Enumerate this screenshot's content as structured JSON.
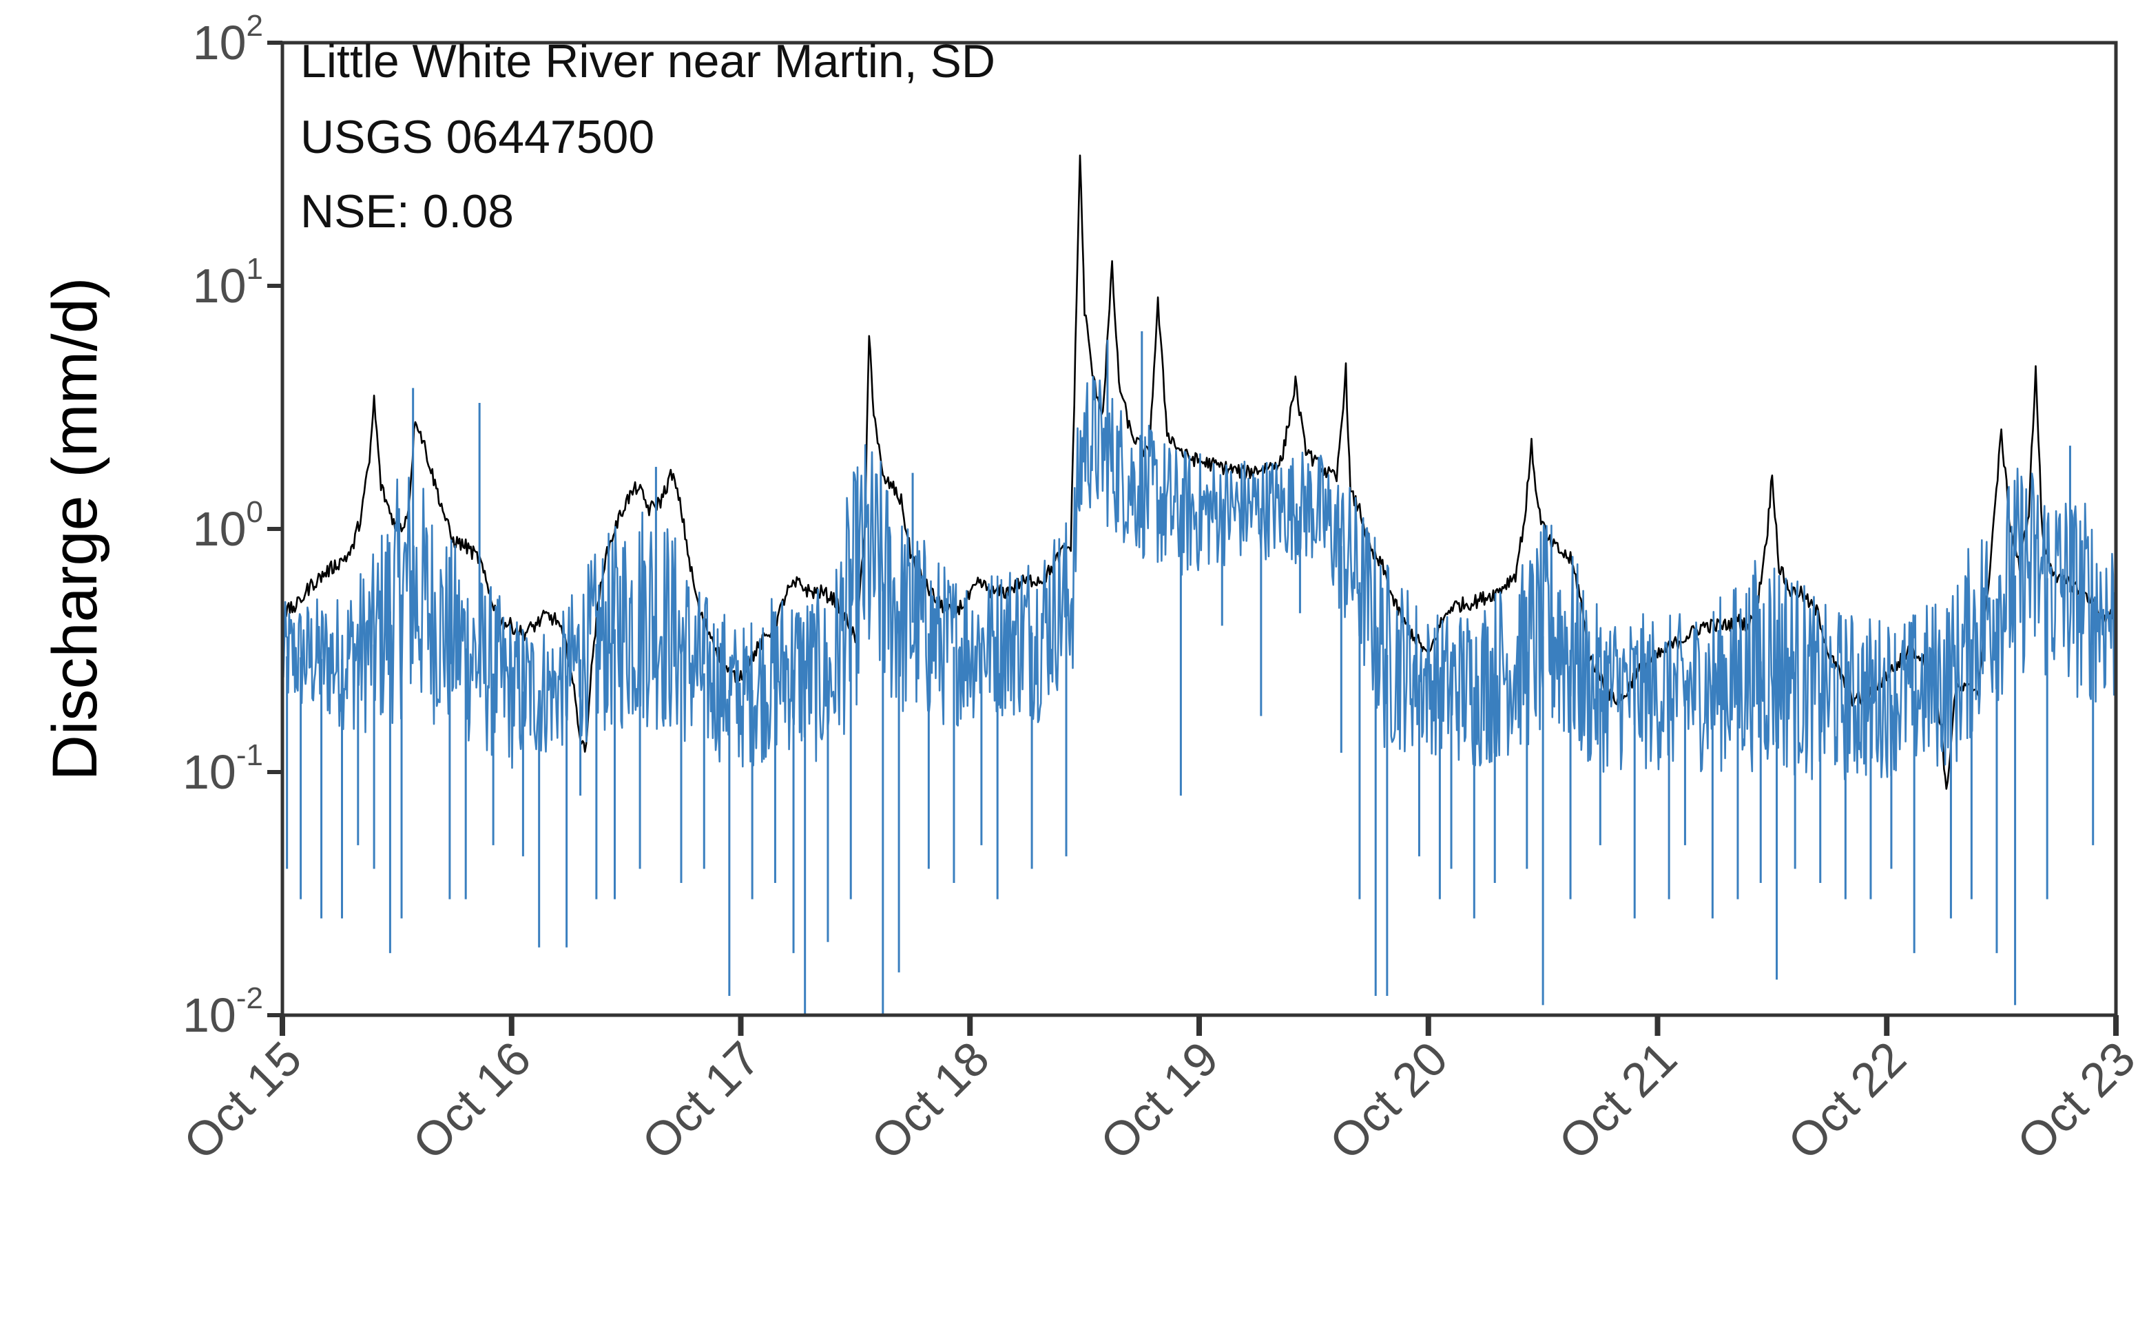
{
  "chart_data": {
    "type": "line",
    "title": "",
    "xlabel": "",
    "ylabel": "Discharge (mm/d)",
    "y_scale": "log",
    "ylim": [
      0.01,
      100
    ],
    "xlim": [
      "Oct 15",
      "Oct 23"
    ],
    "grid": false,
    "legend": "none",
    "annotations": [
      "Little White River near Martin, SD",
      "USGS 06447500",
      "NSE: 0.08"
    ],
    "x_ticks": [
      "Oct 15",
      "Oct 16",
      "Oct 17",
      "Oct 18",
      "Oct 19",
      "Oct 20",
      "Oct 21",
      "Oct 22",
      "Oct 23"
    ],
    "y_ticks": [
      {
        "value": 0.01,
        "base": "10",
        "exp": "-2"
      },
      {
        "value": 0.1,
        "base": "10",
        "exp": "-1"
      },
      {
        "value": 1,
        "base": "10",
        "exp": "0"
      },
      {
        "value": 10,
        "base": "10",
        "exp": "1"
      },
      {
        "value": 100,
        "base": "10",
        "exp": "2"
      }
    ],
    "series": [
      {
        "role": "observed",
        "color": "#000000",
        "x_days_note": "days after Oct 15",
        "points": [
          [
            0.0,
            0.45
          ],
          [
            0.06,
            0.48
          ],
          [
            0.12,
            0.58
          ],
          [
            0.18,
            0.65
          ],
          [
            0.24,
            0.72
          ],
          [
            0.3,
            0.8
          ],
          [
            0.34,
            1.1
          ],
          [
            0.38,
            1.9
          ],
          [
            0.4,
            3.4
          ],
          [
            0.43,
            1.5
          ],
          [
            0.48,
            1.1
          ],
          [
            0.52,
            1.0
          ],
          [
            0.55,
            1.2
          ],
          [
            0.58,
            2.9
          ],
          [
            0.62,
            2.2
          ],
          [
            0.66,
            1.6
          ],
          [
            0.7,
            1.2
          ],
          [
            0.74,
            0.9
          ],
          [
            0.8,
            0.85
          ],
          [
            0.86,
            0.75
          ],
          [
            0.9,
            0.55
          ],
          [
            0.95,
            0.42
          ],
          [
            1.0,
            0.4
          ],
          [
            1.05,
            0.37
          ],
          [
            1.1,
            0.4
          ],
          [
            1.15,
            0.44
          ],
          [
            1.2,
            0.42
          ],
          [
            1.25,
            0.3
          ],
          [
            1.3,
            0.14
          ],
          [
            1.32,
            0.12
          ],
          [
            1.36,
            0.35
          ],
          [
            1.4,
            0.7
          ],
          [
            1.45,
            1.0
          ],
          [
            1.5,
            1.3
          ],
          [
            1.55,
            1.5
          ],
          [
            1.6,
            1.2
          ],
          [
            1.65,
            1.3
          ],
          [
            1.7,
            1.7
          ],
          [
            1.74,
            1.2
          ],
          [
            1.78,
            0.7
          ],
          [
            1.82,
            0.45
          ],
          [
            1.88,
            0.35
          ],
          [
            1.92,
            0.28
          ],
          [
            1.96,
            0.25
          ],
          [
            2.0,
            0.25
          ],
          [
            2.05,
            0.3
          ],
          [
            2.1,
            0.35
          ],
          [
            2.15,
            0.4
          ],
          [
            2.2,
            0.55
          ],
          [
            2.25,
            0.6
          ],
          [
            2.3,
            0.55
          ],
          [
            2.35,
            0.55
          ],
          [
            2.4,
            0.52
          ],
          [
            2.45,
            0.45
          ],
          [
            2.5,
            0.35
          ],
          [
            2.54,
            0.9
          ],
          [
            2.56,
            6.2
          ],
          [
            2.58,
            3.1
          ],
          [
            2.62,
            1.6
          ],
          [
            2.66,
            1.5
          ],
          [
            2.7,
            1.3
          ],
          [
            2.74,
            0.8
          ],
          [
            2.8,
            0.6
          ],
          [
            2.86,
            0.5
          ],
          [
            2.92,
            0.45
          ],
          [
            2.98,
            0.5
          ],
          [
            3.04,
            0.6
          ],
          [
            3.1,
            0.55
          ],
          [
            3.16,
            0.55
          ],
          [
            3.22,
            0.6
          ],
          [
            3.28,
            0.62
          ],
          [
            3.32,
            0.62
          ],
          [
            3.36,
            0.7
          ],
          [
            3.4,
            0.8
          ],
          [
            3.44,
            0.85
          ],
          [
            3.46,
            5.5
          ],
          [
            3.48,
            35.0
          ],
          [
            3.5,
            8.0
          ],
          [
            3.54,
            4.0
          ],
          [
            3.58,
            3.0
          ],
          [
            3.62,
            12.0
          ],
          [
            3.65,
            4.0
          ],
          [
            3.7,
            2.5
          ],
          [
            3.74,
            2.2
          ],
          [
            3.78,
            2.0
          ],
          [
            3.82,
            8.5
          ],
          [
            3.86,
            2.5
          ],
          [
            3.9,
            2.2
          ],
          [
            3.94,
            2.0
          ],
          [
            4.0,
            1.9
          ],
          [
            4.1,
            1.8
          ],
          [
            4.2,
            1.7
          ],
          [
            4.3,
            1.8
          ],
          [
            4.36,
            1.9
          ],
          [
            4.42,
            4.0
          ],
          [
            4.46,
            2.2
          ],
          [
            4.5,
            1.9
          ],
          [
            4.56,
            1.7
          ],
          [
            4.6,
            1.6
          ],
          [
            4.64,
            4.5
          ],
          [
            4.66,
            1.4
          ],
          [
            4.7,
            1.2
          ],
          [
            4.75,
            0.8
          ],
          [
            4.8,
            0.7
          ],
          [
            4.85,
            0.5
          ],
          [
            4.9,
            0.4
          ],
          [
            4.95,
            0.35
          ],
          [
            5.0,
            0.3
          ],
          [
            5.05,
            0.4
          ],
          [
            5.1,
            0.48
          ],
          [
            5.2,
            0.5
          ],
          [
            5.3,
            0.55
          ],
          [
            5.38,
            0.65
          ],
          [
            5.42,
            1.1
          ],
          [
            5.45,
            2.2
          ],
          [
            5.48,
            1.2
          ],
          [
            5.52,
            0.9
          ],
          [
            5.58,
            0.8
          ],
          [
            5.62,
            0.75
          ],
          [
            5.66,
            0.55
          ],
          [
            5.7,
            0.3
          ],
          [
            5.75,
            0.25
          ],
          [
            5.8,
            0.2
          ],
          [
            5.85,
            0.2
          ],
          [
            5.9,
            0.25
          ],
          [
            5.95,
            0.28
          ],
          [
            6.0,
            0.3
          ],
          [
            6.1,
            0.35
          ],
          [
            6.2,
            0.4
          ],
          [
            6.3,
            0.4
          ],
          [
            6.35,
            0.42
          ],
          [
            6.4,
            0.4
          ],
          [
            6.44,
            0.52
          ],
          [
            6.48,
            1.0
          ],
          [
            6.5,
            1.7
          ],
          [
            6.53,
            0.7
          ],
          [
            6.58,
            0.55
          ],
          [
            6.62,
            0.55
          ],
          [
            6.7,
            0.45
          ],
          [
            6.75,
            0.3
          ],
          [
            6.8,
            0.25
          ],
          [
            6.85,
            0.2
          ],
          [
            6.9,
            0.2
          ],
          [
            7.0,
            0.25
          ],
          [
            7.05,
            0.28
          ],
          [
            7.1,
            0.32
          ],
          [
            7.15,
            0.3
          ],
          [
            7.2,
            0.24
          ],
          [
            7.24,
            0.15
          ],
          [
            7.26,
            0.08
          ],
          [
            7.3,
            0.22
          ],
          [
            7.35,
            0.22
          ],
          [
            7.4,
            0.22
          ],
          [
            7.44,
            0.55
          ],
          [
            7.5,
            2.5
          ],
          [
            7.54,
            1.0
          ],
          [
            7.58,
            0.7
          ],
          [
            7.62,
            1.2
          ],
          [
            7.65,
            4.5
          ],
          [
            7.68,
            0.9
          ],
          [
            7.72,
            0.7
          ],
          [
            7.76,
            0.6
          ],
          [
            7.8,
            0.6
          ],
          [
            7.86,
            0.55
          ],
          [
            7.9,
            0.5
          ],
          [
            7.95,
            0.42
          ],
          [
            8.0,
            0.45
          ]
        ]
      },
      {
        "role": "simulated",
        "color": "#3a7fbf",
        "x_days_note": "days after Oct 15",
        "envelope": [
          [
            0.0,
            0.18,
            0.5
          ],
          [
            0.25,
            0.15,
            0.55
          ],
          [
            0.4,
            0.14,
            0.8
          ],
          [
            0.55,
            0.17,
            2.0
          ],
          [
            0.7,
            0.15,
            1.0
          ],
          [
            0.85,
            0.12,
            0.7
          ],
          [
            1.0,
            0.1,
            0.45
          ],
          [
            1.2,
            0.12,
            0.4
          ],
          [
            1.4,
            0.14,
            0.9
          ],
          [
            1.6,
            0.15,
            1.5
          ],
          [
            1.8,
            0.12,
            0.6
          ],
          [
            2.0,
            0.1,
            0.4
          ],
          [
            2.2,
            0.12,
            0.6
          ],
          [
            2.4,
            0.1,
            0.55
          ],
          [
            2.55,
            0.22,
            2.5
          ],
          [
            2.7,
            0.16,
            1.2
          ],
          [
            2.9,
            0.15,
            0.7
          ],
          [
            3.1,
            0.17,
            0.7
          ],
          [
            3.3,
            0.16,
            0.9
          ],
          [
            3.45,
            0.25,
            1.2
          ],
          [
            3.5,
            1.2,
            5.0
          ],
          [
            3.7,
            0.8,
            3.0
          ],
          [
            3.9,
            0.6,
            2.2
          ],
          [
            4.1,
            0.7,
            2.0
          ],
          [
            4.3,
            0.75,
            2.0
          ],
          [
            4.5,
            0.7,
            2.2
          ],
          [
            4.65,
            0.35,
            1.6
          ],
          [
            4.8,
            0.12,
            0.8
          ],
          [
            5.0,
            0.12,
            0.45
          ],
          [
            5.2,
            0.1,
            0.5
          ],
          [
            5.4,
            0.12,
            0.7
          ],
          [
            5.55,
            0.13,
            1.2
          ],
          [
            5.7,
            0.1,
            0.5
          ],
          [
            5.9,
            0.1,
            0.45
          ],
          [
            6.1,
            0.1,
            0.45
          ],
          [
            6.3,
            0.1,
            0.55
          ],
          [
            6.5,
            0.1,
            0.9
          ],
          [
            6.7,
            0.09,
            0.5
          ],
          [
            6.9,
            0.09,
            0.45
          ],
          [
            7.1,
            0.1,
            0.45
          ],
          [
            7.3,
            0.1,
            0.6
          ],
          [
            7.5,
            0.2,
            1.5
          ],
          [
            7.6,
            0.25,
            2.0
          ],
          [
            7.8,
            0.2,
            1.5
          ],
          [
            8.0,
            0.18,
            1.0
          ]
        ],
        "spikes": [
          [
            0.02,
            0.04
          ],
          [
            0.08,
            0.03
          ],
          [
            0.17,
            0.025
          ],
          [
            0.26,
            0.025
          ],
          [
            0.33,
            0.05
          ],
          [
            0.4,
            0.04
          ],
          [
            0.47,
            0.018
          ],
          [
            0.52,
            0.025
          ],
          [
            0.57,
            3.8
          ],
          [
            0.73,
            0.03
          ],
          [
            0.8,
            0.03
          ],
          [
            0.86,
            3.3
          ],
          [
            0.92,
            0.05
          ],
          [
            1.05,
            0.045
          ],
          [
            1.12,
            0.019
          ],
          [
            1.24,
            0.019
          ],
          [
            1.3,
            0.08
          ],
          [
            1.37,
            0.03
          ],
          [
            1.45,
            0.03
          ],
          [
            1.56,
            0.04
          ],
          [
            1.63,
            1.8
          ],
          [
            1.74,
            0.035
          ],
          [
            1.84,
            0.04
          ],
          [
            1.95,
            0.012
          ],
          [
            2.05,
            0.03
          ],
          [
            2.15,
            0.035
          ],
          [
            2.23,
            0.018
          ],
          [
            2.28,
            0.01
          ],
          [
            2.38,
            0.02
          ],
          [
            2.48,
            0.03
          ],
          [
            2.62,
            0.01
          ],
          [
            2.69,
            0.015
          ],
          [
            2.75,
            1.7
          ],
          [
            2.82,
            0.04
          ],
          [
            2.93,
            0.035
          ],
          [
            3.05,
            0.05
          ],
          [
            3.12,
            0.03
          ],
          [
            3.27,
            0.04
          ],
          [
            3.42,
            0.045
          ],
          [
            3.6,
            6.0
          ],
          [
            3.75,
            6.5
          ],
          [
            3.92,
            0.08
          ],
          [
            4.1,
            0.4
          ],
          [
            4.27,
            0.17
          ],
          [
            4.44,
            0.45
          ],
          [
            4.62,
            0.12
          ],
          [
            4.7,
            0.03
          ],
          [
            4.77,
            0.012
          ],
          [
            4.82,
            0.012
          ],
          [
            4.96,
            0.045
          ],
          [
            5.05,
            0.03
          ],
          [
            5.1,
            0.04
          ],
          [
            5.2,
            0.025
          ],
          [
            5.29,
            0.035
          ],
          [
            5.43,
            0.04
          ],
          [
            5.5,
            0.011
          ],
          [
            5.62,
            0.03
          ],
          [
            5.75,
            0.05
          ],
          [
            5.9,
            0.025
          ],
          [
            6.05,
            0.03
          ],
          [
            6.12,
            0.05
          ],
          [
            6.24,
            0.025
          ],
          [
            6.35,
            0.03
          ],
          [
            6.45,
            0.035
          ],
          [
            6.52,
            0.014
          ],
          [
            6.6,
            0.04
          ],
          [
            6.71,
            0.035
          ],
          [
            6.82,
            0.03
          ],
          [
            6.93,
            0.03
          ],
          [
            7.02,
            0.04
          ],
          [
            7.12,
            0.018
          ],
          [
            7.28,
            0.025
          ],
          [
            7.37,
            0.03
          ],
          [
            7.48,
            0.018
          ],
          [
            7.56,
            0.011
          ],
          [
            7.7,
            0.03
          ],
          [
            7.8,
            2.2
          ],
          [
            7.9,
            0.05
          ]
        ]
      }
    ]
  }
}
